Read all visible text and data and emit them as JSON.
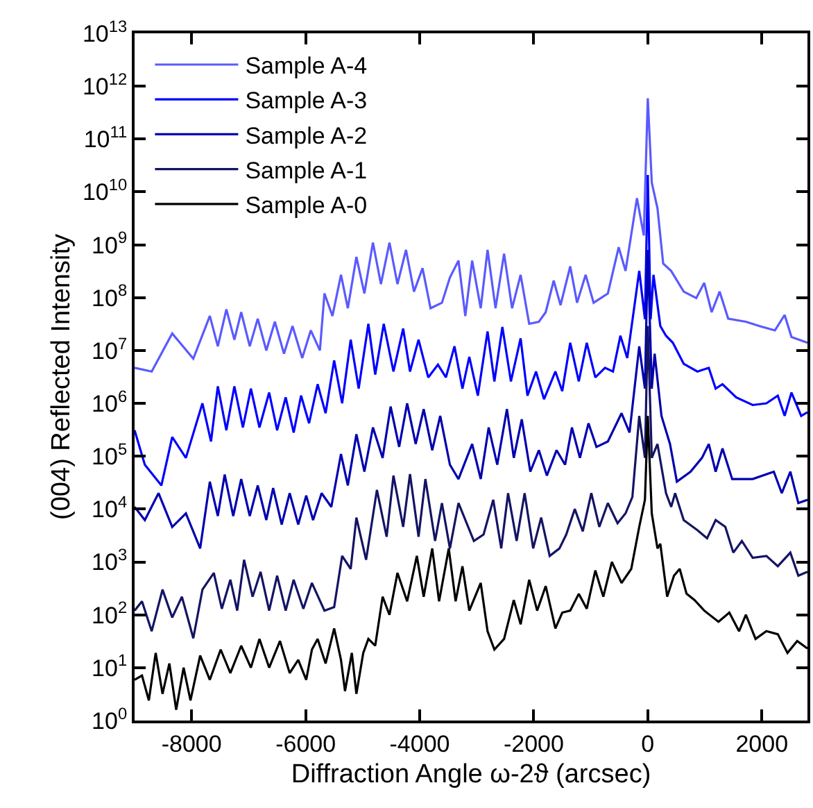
{
  "chart_data": {
    "type": "line",
    "xlabel": "Diffraction Angle ω-2ϑ (arcsec)",
    "ylabel": "(004) Reflected Intensity",
    "log": "y",
    "legend": "top left",
    "line_style": "solid",
    "marker": "none",
    "xlim": [
      -9000,
      2800
    ],
    "xticks": [
      -8000,
      -6000,
      -4000,
      -2000,
      0,
      2000
    ],
    "ylim": [
      1,
      10000000000000.0
    ],
    "yticks": [
      {
        "value": 1,
        "label": "10$^{0}$"
      },
      {
        "value": 10,
        "label": "10$^{1}$"
      },
      {
        "value": 100,
        "label": "10$^{2}$"
      },
      {
        "value": 1000,
        "label": "10$^{3}$"
      },
      {
        "value": 10000,
        "label": "10$^{4}$"
      },
      {
        "value": 100000,
        "label": "10$^{5}$"
      },
      {
        "value": 1000000,
        "label": "10$^{6}$"
      },
      {
        "value": 10000000,
        "label": "10$^{7}$"
      },
      {
        "value": 100000000,
        "label": "10$^{8}$"
      },
      {
        "value": 1000000000,
        "label": "10$^{9}$"
      },
      {
        "value": 10000000000,
        "label": "10$^{10}$"
      },
      {
        "value": 100000000000,
        "label": "10$^{11}$"
      },
      {
        "value": 1000000000000,
        "label": "10$^{12}$"
      },
      {
        "value": 10000000000000,
        "label": "10$^{13}$"
      }
    ],
    "series": [
      {
        "name": "Sample A-4",
        "color": "#5a5aff",
        "x": [
          -9000,
          -8700,
          -8340,
          -7970,
          -7680,
          -7540,
          -7390,
          -7250,
          -7130,
          -6980,
          -6840,
          -6690,
          -6540,
          -6380,
          -6230,
          -6060,
          -5910,
          -5750,
          -5670,
          -5530,
          -5380,
          -5260,
          -5110,
          -4970,
          -4820,
          -4680,
          -4530,
          -4390,
          -4240,
          -4100,
          -3950,
          -3810,
          -3610,
          -3470,
          -3320,
          -3200,
          -3080,
          -2930,
          -2810,
          -2670,
          -2520,
          -2380,
          -2230,
          -2080,
          -1910,
          -1790,
          -1650,
          -1530,
          -1360,
          -1240,
          -1090,
          -950,
          -700,
          -510,
          -390,
          -190,
          -70,
          0,
          70,
          170,
          270,
          410,
          630,
          850,
          990,
          1120,
          1260,
          1410,
          1720,
          1960,
          2230,
          2400,
          2520,
          2800
        ],
        "values": [
          4700000.0,
          4000000.0,
          21000000.0,
          7000000.0,
          45000000.0,
          12000000.0,
          60000000.0,
          16000000.0,
          53000000.0,
          12000000.0,
          40000000.0,
          10000000.0,
          35000000.0,
          8700000.0,
          29000000.0,
          7200000.0,
          24000000.0,
          10000000.0,
          120000000.0,
          45000000.0,
          270000000.0,
          63000000.0,
          590000000.0,
          120000000.0,
          1100000000.0,
          180000000.0,
          1100000000.0,
          180000000.0,
          800000000.0,
          130000000.0,
          360000000.0,
          63000000.0,
          80000000.0,
          240000000.0,
          500000000.0,
          45000000.0,
          500000000.0,
          63000000.0,
          800000000.0,
          63000000.0,
          680000000.0,
          63000000.0,
          270000000.0,
          32000000.0,
          35000000.0,
          53000000.0,
          210000000.0,
          72000000.0,
          390000000.0,
          80000000.0,
          270000000.0,
          80000000.0,
          120000000.0,
          900000000.0,
          320000000.0,
          7600000000.0,
          1500000000.0,
          590000000000.0,
          15000000000.0,
          4900000000.0,
          440000000.0,
          320000000.0,
          130000000.0,
          98000000.0,
          190000000.0,
          53000000.0,
          130000000.0,
          40000000.0,
          35000000.0,
          29000000.0,
          24000000.0,
          47000000.0,
          18000000.0,
          14000000.0
        ]
      },
      {
        "name": "Sample A-3",
        "color": "#0000ff",
        "x": [
          -9000,
          -8820,
          -8530,
          -8340,
          -8100,
          -7810,
          -7660,
          -7540,
          -7390,
          -7250,
          -7100,
          -6960,
          -6810,
          -6640,
          -6500,
          -6350,
          -6210,
          -6080,
          -5940,
          -5790,
          -5650,
          -5500,
          -5360,
          -5210,
          -5070,
          -4900,
          -4780,
          -4630,
          -4460,
          -4290,
          -4170,
          -4020,
          -3850,
          -3680,
          -3540,
          -3390,
          -3250,
          -3130,
          -2980,
          -2810,
          -2690,
          -2550,
          -2400,
          -2230,
          -2110,
          -1960,
          -1820,
          -1620,
          -1500,
          -1360,
          -1210,
          -1070,
          -920,
          -750,
          -610,
          -480,
          -360,
          -150,
          -50,
          0,
          50,
          100,
          220,
          320,
          440,
          630,
          870,
          1070,
          1190,
          1310,
          1550,
          1840,
          2080,
          2280,
          2400,
          2520,
          2690,
          2800
        ],
        "values": [
          310000.0,
          69000.0,
          28000.0,
          230000.0,
          93000.0,
          1000000.0,
          190000.0,
          2100000.0,
          310000.0,
          2100000.0,
          350000.0,
          1900000.0,
          350000.0,
          1600000.0,
          310000.0,
          1300000.0,
          280000.0,
          1400000.0,
          420000.0,
          2300000.0,
          650000.0,
          6500000.0,
          1000000.0,
          16000000.0,
          1900000.0,
          32000000.0,
          3500000.0,
          32000000.0,
          4000000.0,
          26000000.0,
          4000000.0,
          16000000.0,
          3100000.0,
          5400000.0,
          3100000.0,
          12000000.0,
          1900000.0,
          7600000.0,
          1400000.0,
          23000000.0,
          2600000.0,
          28000000.0,
          2600000.0,
          17000000.0,
          1400000.0,
          4000000.0,
          1200000.0,
          4000000.0,
          1700000.0,
          14000000.0,
          2600000.0,
          14000000.0,
          3100000.0,
          4700000.0,
          4000000.0,
          19000000.0,
          7200000.0,
          320000000.0,
          39000000.0,
          21000000000.0,
          39000000.0,
          270000000.0,
          29000000.0,
          19000000.0,
          14000000.0,
          5600000.0,
          4000000.0,
          4700000.0,
          1900000.0,
          2300000.0,
          1300000.0,
          930000.0,
          1000000.0,
          1400000.0,
          580000.0,
          1600000.0,
          580000.0,
          680000.0
        ]
      },
      {
        "name": "Sample A-2",
        "color": "#0000b0",
        "x": [
          -9000,
          -8820,
          -8580,
          -8340,
          -8100,
          -7850,
          -7680,
          -7540,
          -7420,
          -7270,
          -7130,
          -6980,
          -6840,
          -6690,
          -6570,
          -6420,
          -6280,
          -6130,
          -5990,
          -5870,
          -5720,
          -5550,
          -5380,
          -5260,
          -5110,
          -4970,
          -4820,
          -4650,
          -4510,
          -4360,
          -4220,
          -4070,
          -3930,
          -3780,
          -3640,
          -3470,
          -3320,
          -3080,
          -2930,
          -2790,
          -2640,
          -2470,
          -2350,
          -2210,
          -2060,
          -1910,
          -1770,
          -1600,
          -1450,
          -1330,
          -1190,
          -1040,
          -900,
          -700,
          -460,
          -320,
          -150,
          -50,
          0,
          70,
          120,
          240,
          390,
          510,
          750,
          950,
          1070,
          1190,
          1310,
          1480,
          1840,
          2210,
          2350,
          2500,
          2640,
          2800
        ],
        "values": [
          11000.0,
          6200.0,
          20000.0,
          4600.0,
          8300.0,
          1800.0,
          33000.0,
          7400.0,
          45000.0,
          7400.0,
          37000.0,
          7400.0,
          28000.0,
          6200.0,
          25000.0,
          5100.0,
          20000.0,
          5100.0,
          18000.0,
          6200.0,
          20000.0,
          11000.0,
          110000.0,
          28000.0,
          260000.0,
          51000.0,
          350000.0,
          93000.0,
          870000.0,
          150000.0,
          1000000.0,
          170000.0,
          780000.0,
          130000.0,
          580000.0,
          69000.0,
          37000.0,
          170000.0,
          37000.0,
          350000.0,
          69000.0,
          780000.0,
          93000.0,
          500000.0,
          51000.0,
          130000.0,
          43000.0,
          130000.0,
          69000.0,
          350000.0,
          93000.0,
          420000.0,
          150000.0,
          190000.0,
          650000.0,
          280000.0,
          12000000.0,
          1900000.0,
          800000000.0,
          1900000.0,
          8700000.0,
          580000.0,
          170000.0,
          33000.0,
          51000.0,
          93000.0,
          170000.0,
          51000.0,
          140000.0,
          37000.0,
          37000.0,
          51000.0,
          20000.0,
          51000.0,
          13000.0,
          15000.0
        ]
      },
      {
        "name": "Sample A-1",
        "color": "#141464",
        "x": [
          -9000,
          -8870,
          -8700,
          -8510,
          -8340,
          -8170,
          -7970,
          -7810,
          -7610,
          -7470,
          -7320,
          -7200,
          -7080,
          -6930,
          -6790,
          -6640,
          -6500,
          -6350,
          -6210,
          -6040,
          -5890,
          -5670,
          -5500,
          -5360,
          -5210,
          -5110,
          -4940,
          -4750,
          -4580,
          -4460,
          -4290,
          -4170,
          -4020,
          -3900,
          -3730,
          -3610,
          -3470,
          -3320,
          -3050,
          -2880,
          -2710,
          -2570,
          -2450,
          -2300,
          -2160,
          -2010,
          -1870,
          -1720,
          -1550,
          -1430,
          -1280,
          -1140,
          -990,
          -850,
          -700,
          -530,
          -390,
          -270,
          -150,
          -50,
          0,
          70,
          170,
          320,
          410,
          480,
          630,
          870,
          1040,
          1190,
          1360,
          1500,
          1650,
          1840,
          2080,
          2280,
          2500,
          2640,
          2800
        ],
        "values": [
          120,
          180,
          49,
          300,
          89,
          220,
          36,
          300,
          620,
          130,
          460,
          120,
          1100,
          220,
          650,
          120,
          550,
          120,
          460,
          130,
          400,
          120,
          140,
          1300,
          740,
          6900,
          1100,
          23000,
          3000,
          43000,
          4600,
          46000,
          3000,
          37000,
          2500,
          13000,
          1800,
          13000,
          2500,
          3300,
          15000,
          1800,
          20000,
          2500,
          20000,
          1800,
          6900,
          1300,
          1800,
          3300,
          10000,
          3800,
          20000,
          4600,
          13000,
          5400,
          8300,
          17000,
          580000.0,
          93000.0,
          29000000.0,
          93000.0,
          170000.0,
          20000,
          11000,
          20000,
          6200,
          4000,
          2800,
          6200,
          4600,
          1500,
          2500,
          1200,
          1300,
          830,
          1500,
          550,
          650
        ]
      },
      {
        "name": "Sample A-0",
        "color": "#000000",
        "x": [
          -9000,
          -8870,
          -8750,
          -8630,
          -8510,
          -8390,
          -8270,
          -8140,
          -8020,
          -7850,
          -7680,
          -7490,
          -7320,
          -7130,
          -6960,
          -6810,
          -6640,
          -6450,
          -6280,
          -6130,
          -5990,
          -5890,
          -5790,
          -5650,
          -5500,
          -5380,
          -5310,
          -5190,
          -5110,
          -4990,
          -4900,
          -4780,
          -4650,
          -4530,
          -4390,
          -4220,
          -4050,
          -3930,
          -3780,
          -3660,
          -3490,
          -3370,
          -3250,
          -3130,
          -2930,
          -2810,
          -2690,
          -2520,
          -2350,
          -2230,
          -2080,
          -1940,
          -1790,
          -1620,
          -1500,
          -1360,
          -1210,
          -1070,
          -920,
          -780,
          -630,
          -460,
          -290,
          -150,
          -50,
          0,
          70,
          170,
          220,
          340,
          460,
          560,
          680,
          820,
          990,
          1240,
          1430,
          1600,
          1720,
          1890,
          2080,
          2280,
          2450,
          2620,
          2800
        ],
        "values": [
          5.9,
          7.1,
          2.4,
          19,
          3.2,
          12,
          1.6,
          10,
          2.4,
          17,
          5.9,
          22,
          7.9,
          26,
          10,
          35,
          10,
          32,
          7.9,
          14,
          5.9,
          22,
          35,
          12,
          55,
          14,
          3.6,
          19,
          3.2,
          19,
          35,
          26,
          220,
          100,
          620,
          180,
          1300,
          220,
          1800,
          180,
          1800,
          180,
          830,
          120,
          400,
          49,
          22,
          35,
          190,
          66,
          460,
          120,
          350,
          55,
          110,
          120,
          250,
          130,
          690,
          220,
          1000,
          400,
          740,
          4600,
          15000,
          580000.0,
          8300,
          1800,
          2200,
          220,
          550,
          740,
          250,
          190,
          120,
          74,
          110,
          49,
          100,
          35,
          49,
          43,
          19,
          32,
          23
        ]
      }
    ]
  }
}
